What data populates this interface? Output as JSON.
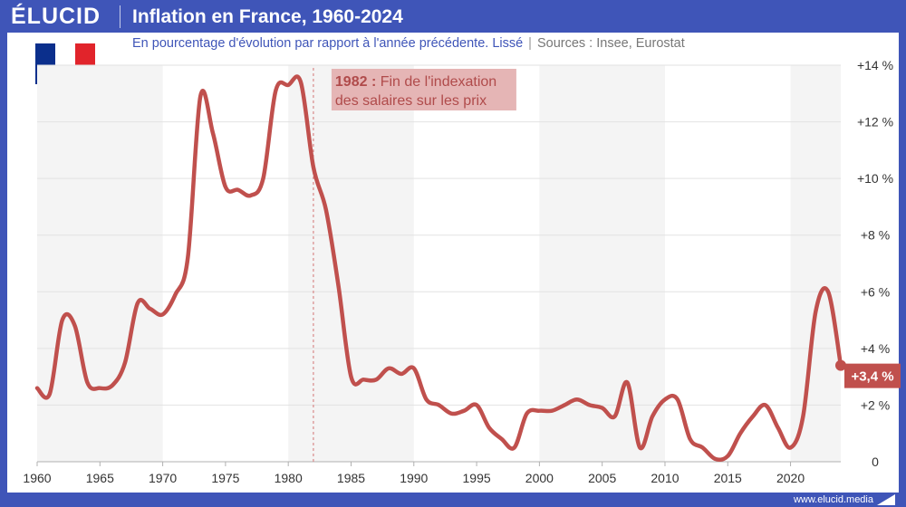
{
  "header": {
    "brand": "ÉLUCID",
    "title": "Inflation en France, 1960-2024"
  },
  "subtitle": {
    "main": "En pourcentage d'évolution par rapport à l'année précédente. Lissé",
    "separator": "|",
    "sources": "Sources : Insee, Eurostat"
  },
  "flag": {
    "colors": [
      "#0b2f8c",
      "#ffffff",
      "#e1242b"
    ]
  },
  "footer": {
    "url": "www.elucid.media"
  },
  "colors": {
    "line": "#c0504d",
    "band": "#f4f4f4",
    "grid": "#e2e2e2",
    "accent": "#3f55b8"
  },
  "chart_data": {
    "type": "line",
    "title": "Inflation en France, 1960-2024",
    "xlabel": "",
    "ylabel": "",
    "xlim": [
      1960,
      2024
    ],
    "ylim": [
      0,
      14
    ],
    "x_ticks": [
      1960,
      1965,
      1970,
      1975,
      1980,
      1985,
      1990,
      1995,
      2000,
      2005,
      2010,
      2015,
      2020
    ],
    "x_tick_labels": [
      "1960",
      "1965",
      "1970",
      "1975",
      "1980",
      "1985",
      "1990",
      "1995",
      "2000",
      "2005",
      "2010",
      "2015",
      "2020"
    ],
    "y_ticks": [
      0,
      2,
      4,
      6,
      8,
      10,
      12,
      14
    ],
    "y_tick_labels": [
      "0",
      "+2 %",
      "+4 %",
      "+6 %",
      "+8 %",
      "+10 %",
      "+12 %",
      "+14 %"
    ],
    "bands": [
      [
        1960,
        1970
      ],
      [
        1980,
        1990
      ],
      [
        2000,
        2010
      ],
      [
        2020,
        2024
      ]
    ],
    "series": [
      {
        "name": "Inflation",
        "x": [
          1960,
          1961,
          1962,
          1963,
          1964,
          1965,
          1966,
          1967,
          1968,
          1969,
          1970,
          1971,
          1972,
          1973,
          1974,
          1975,
          1976,
          1977,
          1978,
          1979,
          1980,
          1981,
          1982,
          1983,
          1984,
          1985,
          1986,
          1987,
          1988,
          1989,
          1990,
          1991,
          1992,
          1993,
          1994,
          1995,
          1996,
          1997,
          1998,
          1999,
          2000,
          2001,
          2002,
          2003,
          2004,
          2005,
          2006,
          2007,
          2008,
          2009,
          2010,
          2011,
          2012,
          2013,
          2014,
          2015,
          2016,
          2017,
          2018,
          2019,
          2020,
          2021,
          2022,
          2023,
          2024
        ],
        "values": [
          2.6,
          2.4,
          5.0,
          4.8,
          2.8,
          2.6,
          2.7,
          3.5,
          5.6,
          5.4,
          5.2,
          5.9,
          7.2,
          12.9,
          11.6,
          9.7,
          9.6,
          9.4,
          10.0,
          13.1,
          13.3,
          13.4,
          10.4,
          8.9,
          6.2,
          3.0,
          2.9,
          2.9,
          3.3,
          3.1,
          3.3,
          2.2,
          2.0,
          1.7,
          1.8,
          2.0,
          1.2,
          0.8,
          0.5,
          1.7,
          1.8,
          1.8,
          2.0,
          2.2,
          2.0,
          1.9,
          1.6,
          2.8,
          0.5,
          1.6,
          2.2,
          2.2,
          0.8,
          0.5,
          0.1,
          0.2,
          1.0,
          1.6,
          2.0,
          1.2,
          0.5,
          1.6,
          5.3,
          6.0,
          3.4
        ]
      }
    ],
    "annotations": [
      {
        "x": 1982,
        "bold": "1982 :",
        "text_line1": " Fin de l'indexation",
        "text_line2": "des salaires sur les prix"
      }
    ],
    "end_label": "+3,4 %"
  }
}
